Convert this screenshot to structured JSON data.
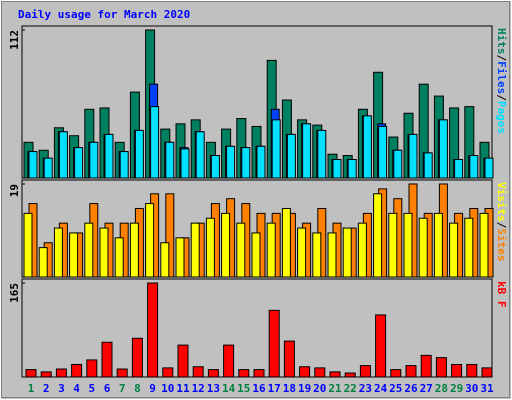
{
  "title": "Daily usage for March 2020",
  "legend_separator": "/",
  "chart_data": [
    {
      "type": "bar",
      "ylim": [
        0,
        112
      ],
      "yticks": [
        112
      ],
      "series": [
        {
          "name": "Hits",
          "color": "#008060",
          "values": [
            27,
            21,
            38,
            32,
            52,
            53,
            27,
            65,
            112,
            37,
            41,
            44,
            27,
            37,
            45,
            39,
            89,
            59,
            44,
            40,
            18,
            17,
            52,
            80,
            31,
            49,
            71,
            62,
            53,
            54,
            27
          ]
        },
        {
          "name": "Files",
          "color": "#0040ff",
          "values": [
            20,
            15,
            35,
            23,
            27,
            33,
            20,
            36,
            71,
            27,
            23,
            35,
            17,
            24,
            23,
            24,
            52,
            33,
            41,
            36,
            14,
            14,
            47,
            41,
            21,
            33,
            19,
            44,
            14,
            17,
            15
          ]
        },
        {
          "name": "Pages",
          "color": "#00e0ff",
          "values": [
            20,
            15,
            35,
            23,
            27,
            33,
            20,
            36,
            54,
            27,
            22,
            35,
            17,
            24,
            23,
            24,
            44,
            33,
            41,
            36,
            14,
            14,
            47,
            39,
            21,
            33,
            19,
            44,
            14,
            17,
            15
          ]
        }
      ]
    },
    {
      "type": "bar",
      "ylim": [
        0,
        19
      ],
      "yticks": [
        19
      ],
      "series": [
        {
          "name": "Visits",
          "color": "#ffff00",
          "values": [
            13,
            6,
            10,
            9,
            11,
            10,
            8,
            11,
            15,
            7,
            8,
            11,
            12,
            13,
            11,
            9,
            11,
            14,
            10,
            9,
            9,
            10,
            11,
            17,
            13,
            13,
            12,
            13,
            11,
            12,
            13
          ]
        },
        {
          "name": "Sites",
          "color": "#ff8000",
          "values": [
            15,
            7,
            11,
            9,
            15,
            11,
            11,
            14,
            17,
            17,
            8,
            11,
            15,
            16,
            15,
            13,
            13,
            13,
            11,
            14,
            11,
            10,
            13,
            18,
            16,
            19,
            13,
            19,
            13,
            14,
            14
          ]
        }
      ]
    },
    {
      "type": "bar",
      "ylim": [
        0,
        165
      ],
      "yticks": [
        165
      ],
      "categories": [
        "1",
        "2",
        "3",
        "4",
        "5",
        "6",
        "7",
        "8",
        "9",
        "10",
        "11",
        "12",
        "13",
        "14",
        "15",
        "16",
        "17",
        "18",
        "19",
        "20",
        "21",
        "22",
        "23",
        "24",
        "25",
        "26",
        "27",
        "28",
        "29",
        "30",
        "31"
      ],
      "category_colors": [
        "#008040",
        "#0000ff",
        "#0000ff",
        "#0000ff",
        "#0000ff",
        "#0000ff",
        "#008040",
        "#008040",
        "#0000ff",
        "#0000ff",
        "#0000ff",
        "#0000ff",
        "#0000ff",
        "#008040",
        "#008040",
        "#0000ff",
        "#0000ff",
        "#0000ff",
        "#0000ff",
        "#0000ff",
        "#008040",
        "#008040",
        "#0000ff",
        "#0000ff",
        "#0000ff",
        "#0000ff",
        "#0000ff",
        "#008040",
        "#008040",
        "#0000ff",
        "#0000ff"
      ],
      "series": [
        {
          "name": "kB F",
          "color": "#ff0000",
          "values": [
            13,
            9,
            14,
            22,
            30,
            61,
            14,
            68,
            165,
            16,
            56,
            18,
            13,
            56,
            13,
            13,
            117,
            63,
            18,
            16,
            9,
            7,
            20,
            109,
            13,
            20,
            38,
            34,
            22,
            22,
            16
          ]
        }
      ]
    }
  ]
}
